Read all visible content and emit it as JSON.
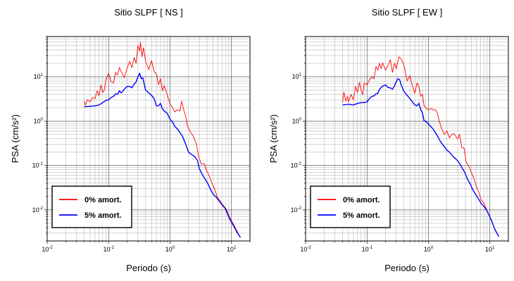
{
  "chart_data": [
    {
      "type": "line",
      "title": "Sitio SLPF [ NS ]",
      "xlabel": "Periodo (s)",
      "ylabel": "PSA (cm/s²)",
      "x_scale": "log",
      "y_scale": "log",
      "xlim": [
        0.01,
        20
      ],
      "ylim": [
        0.002,
        80
      ],
      "x_ticks": [
        {
          "base": "10",
          "exp": "-2",
          "value": 0.01
        },
        {
          "base": "10",
          "exp": "-1",
          "value": 0.1
        },
        {
          "base": "10",
          "exp": "0",
          "value": 1
        },
        {
          "base": "10",
          "exp": "1",
          "value": 10
        }
      ],
      "y_ticks": [
        {
          "base": "10",
          "exp": "-2",
          "value": 0.01
        },
        {
          "base": "10",
          "exp": "-1",
          "value": 0.1
        },
        {
          "base": "10",
          "exp": "0",
          "value": 1
        },
        {
          "base": "10",
          "exp": "1",
          "value": 10
        }
      ],
      "grid": true,
      "legend_position": "bottom-left",
      "series": [
        {
          "name": "0% amort.",
          "color": "#ff0000",
          "points": [
            [
              0.04,
              2.8
            ],
            [
              0.042,
              2.3
            ],
            [
              0.045,
              3.0
            ],
            [
              0.05,
              2.7
            ],
            [
              0.055,
              3.4
            ],
            [
              0.06,
              3.2
            ],
            [
              0.065,
              4.8
            ],
            [
              0.07,
              3.7
            ],
            [
              0.075,
              6.5
            ],
            [
              0.08,
              4.4
            ],
            [
              0.085,
              5.0
            ],
            [
              0.09,
              8.2
            ],
            [
              0.1,
              12.0
            ],
            [
              0.11,
              7.6
            ],
            [
              0.12,
              7.2
            ],
            [
              0.13,
              12.5
            ],
            [
              0.14,
              11.0
            ],
            [
              0.15,
              16.0
            ],
            [
              0.16,
              13.0
            ],
            [
              0.18,
              9.5
            ],
            [
              0.2,
              15.5
            ],
            [
              0.22,
              22.0
            ],
            [
              0.24,
              16.0
            ],
            [
              0.26,
              27.0
            ],
            [
              0.28,
              20.0
            ],
            [
              0.3,
              50.0
            ],
            [
              0.32,
              38.0
            ],
            [
              0.33,
              60.0
            ],
            [
              0.35,
              28.0
            ],
            [
              0.37,
              45.0
            ],
            [
              0.4,
              22.0
            ],
            [
              0.45,
              14.5
            ],
            [
              0.5,
              23.0
            ],
            [
              0.55,
              13.0
            ],
            [
              0.6,
              11.5
            ],
            [
              0.65,
              6.6
            ],
            [
              0.7,
              9.0
            ],
            [
              0.75,
              4.8
            ],
            [
              0.8,
              6.4
            ],
            [
              0.9,
              3.9
            ],
            [
              1.0,
              2.4
            ],
            [
              1.1,
              2.0
            ],
            [
              1.2,
              1.6
            ],
            [
              1.3,
              1.8
            ],
            [
              1.45,
              1.7
            ],
            [
              1.55,
              2.8
            ],
            [
              1.7,
              1.6
            ],
            [
              1.8,
              1.3
            ],
            [
              1.9,
              0.8
            ],
            [
              2.1,
              0.6
            ],
            [
              2.4,
              0.45
            ],
            [
              2.7,
              0.3
            ],
            [
              2.9,
              0.17
            ],
            [
              3.2,
              0.11
            ],
            [
              3.6,
              0.11
            ],
            [
              3.9,
              0.08
            ],
            [
              4.3,
              0.06
            ],
            [
              4.8,
              0.04
            ],
            [
              5.3,
              0.03
            ],
            [
              5.9,
              0.019
            ],
            [
              6.5,
              0.016
            ],
            [
              7.2,
              0.013
            ],
            [
              8.2,
              0.0105
            ],
            [
              9.5,
              0.0065
            ],
            [
              11.0,
              0.0045
            ],
            [
              12.5,
              0.0032
            ],
            [
              14.0,
              0.0024
            ]
          ]
        },
        {
          "name": "5% amort.",
          "color": "#0000ff",
          "points": [
            [
              0.04,
              2.1
            ],
            [
              0.05,
              2.15
            ],
            [
              0.06,
              2.2
            ],
            [
              0.07,
              2.3
            ],
            [
              0.08,
              2.6
            ],
            [
              0.09,
              2.9
            ],
            [
              0.1,
              3.0
            ],
            [
              0.11,
              3.4
            ],
            [
              0.12,
              3.6
            ],
            [
              0.13,
              4.1
            ],
            [
              0.14,
              4.0
            ],
            [
              0.15,
              4.8
            ],
            [
              0.16,
              4.3
            ],
            [
              0.18,
              5.2
            ],
            [
              0.2,
              6.0
            ],
            [
              0.22,
              6.0
            ],
            [
              0.24,
              5.6
            ],
            [
              0.26,
              6.8
            ],
            [
              0.28,
              7.6
            ],
            [
              0.3,
              9.8
            ],
            [
              0.32,
              12.0
            ],
            [
              0.34,
              9.0
            ],
            [
              0.36,
              9.4
            ],
            [
              0.4,
              5.0
            ],
            [
              0.45,
              4.3
            ],
            [
              0.5,
              3.8
            ],
            [
              0.55,
              3.2
            ],
            [
              0.6,
              2.2
            ],
            [
              0.65,
              2.2
            ],
            [
              0.7,
              2.5
            ],
            [
              0.75,
              1.9
            ],
            [
              0.8,
              1.7
            ],
            [
              0.9,
              1.5
            ],
            [
              1.0,
              1.1
            ],
            [
              1.1,
              0.95
            ],
            [
              1.2,
              0.75
            ],
            [
              1.3,
              0.68
            ],
            [
              1.45,
              0.55
            ],
            [
              1.6,
              0.45
            ],
            [
              1.8,
              0.3
            ],
            [
              2.0,
              0.2
            ],
            [
              2.2,
              0.18
            ],
            [
              2.5,
              0.16
            ],
            [
              2.8,
              0.13
            ],
            [
              3.0,
              0.085
            ],
            [
              3.3,
              0.065
            ],
            [
              3.7,
              0.05
            ],
            [
              4.1,
              0.04
            ],
            [
              4.6,
              0.028
            ],
            [
              5.1,
              0.022
            ],
            [
              5.7,
              0.019
            ],
            [
              6.3,
              0.016
            ],
            [
              7.0,
              0.013
            ],
            [
              8.0,
              0.0105
            ],
            [
              9.2,
              0.0065
            ],
            [
              10.7,
              0.0045
            ],
            [
              12.2,
              0.0032
            ],
            [
              14.0,
              0.0024
            ]
          ]
        }
      ]
    },
    {
      "type": "line",
      "title": "Sitio SLPF [ EW ]",
      "xlabel": "Periodo (s)",
      "ylabel": "PSA (cm/s²)",
      "x_scale": "log",
      "y_scale": "log",
      "xlim": [
        0.01,
        20
      ],
      "ylim": [
        0.002,
        80
      ],
      "x_ticks": [
        {
          "base": "10",
          "exp": "-2",
          "value": 0.01
        },
        {
          "base": "10",
          "exp": "-1",
          "value": 0.1
        },
        {
          "base": "10",
          "exp": "0",
          "value": 1
        },
        {
          "base": "10",
          "exp": "1",
          "value": 10
        }
      ],
      "y_ticks": [
        {
          "base": "10",
          "exp": "-2",
          "value": 0.01
        },
        {
          "base": "10",
          "exp": "-1",
          "value": 0.1
        },
        {
          "base": "10",
          "exp": "0",
          "value": 1
        },
        {
          "base": "10",
          "exp": "1",
          "value": 10
        }
      ],
      "grid": true,
      "legend_position": "bottom-left",
      "series": [
        {
          "name": "0% amort.",
          "color": "#ff0000",
          "points": [
            [
              0.04,
              2.6
            ],
            [
              0.042,
              4.5
            ],
            [
              0.045,
              2.8
            ],
            [
              0.048,
              3.6
            ],
            [
              0.05,
              2.7
            ],
            [
              0.055,
              4.0
            ],
            [
              0.06,
              3.0
            ],
            [
              0.065,
              6.0
            ],
            [
              0.07,
              4.4
            ],
            [
              0.075,
              7.4
            ],
            [
              0.08,
              5.0
            ],
            [
              0.085,
              3.9
            ],
            [
              0.09,
              7.2
            ],
            [
              0.1,
              6.5
            ],
            [
              0.11,
              8.5
            ],
            [
              0.12,
              10.0
            ],
            [
              0.13,
              9.0
            ],
            [
              0.14,
              17.0
            ],
            [
              0.15,
              14.0
            ],
            [
              0.16,
              20.0
            ],
            [
              0.17,
              15.0
            ],
            [
              0.18,
              20.5
            ],
            [
              0.2,
              14.0
            ],
            [
              0.22,
              18.0
            ],
            [
              0.24,
              24.0
            ],
            [
              0.26,
              12.5
            ],
            [
              0.28,
              20.0
            ],
            [
              0.3,
              15.0
            ],
            [
              0.33,
              28.0
            ],
            [
              0.36,
              25.0
            ],
            [
              0.4,
              18.0
            ],
            [
              0.45,
              8.0
            ],
            [
              0.5,
              10.5
            ],
            [
              0.55,
              6.0
            ],
            [
              0.6,
              4.2
            ],
            [
              0.65,
              7.2
            ],
            [
              0.7,
              6.0
            ],
            [
              0.75,
              3.6
            ],
            [
              0.8,
              4.0
            ],
            [
              0.85,
              2.2
            ],
            [
              0.9,
              2.0
            ],
            [
              1.0,
              1.8
            ],
            [
              1.1,
              1.9
            ],
            [
              1.2,
              1.8
            ],
            [
              1.3,
              1.8
            ],
            [
              1.4,
              1.5
            ],
            [
              1.5,
              1.0
            ],
            [
              1.6,
              0.75
            ],
            [
              1.8,
              0.5
            ],
            [
              2.0,
              0.6
            ],
            [
              2.2,
              0.42
            ],
            [
              2.4,
              0.5
            ],
            [
              2.6,
              0.52
            ],
            [
              2.8,
              0.45
            ],
            [
              3.0,
              0.4
            ],
            [
              3.2,
              0.5
            ],
            [
              3.5,
              0.25
            ],
            [
              3.8,
              0.25
            ],
            [
              4.1,
              0.12
            ],
            [
              4.5,
              0.1
            ],
            [
              5.0,
              0.07
            ],
            [
              5.5,
              0.05
            ],
            [
              6.0,
              0.035
            ],
            [
              6.6,
              0.025
            ],
            [
              7.2,
              0.017
            ],
            [
              8.0,
              0.014
            ],
            [
              9.0,
              0.0095
            ],
            [
              10.5,
              0.006
            ],
            [
              12.0,
              0.0037
            ],
            [
              14.0,
              0.0025
            ]
          ]
        },
        {
          "name": "5% amort.",
          "color": "#0000ff",
          "points": [
            [
              0.04,
              2.3
            ],
            [
              0.05,
              2.4
            ],
            [
              0.06,
              2.3
            ],
            [
              0.07,
              2.5
            ],
            [
              0.08,
              2.6
            ],
            [
              0.09,
              2.6
            ],
            [
              0.1,
              2.7
            ],
            [
              0.11,
              3.2
            ],
            [
              0.12,
              3.6
            ],
            [
              0.13,
              3.7
            ],
            [
              0.14,
              4.1
            ],
            [
              0.15,
              4.2
            ],
            [
              0.16,
              5.2
            ],
            [
              0.18,
              6.2
            ],
            [
              0.2,
              6.5
            ],
            [
              0.22,
              5.7
            ],
            [
              0.24,
              5.6
            ],
            [
              0.26,
              5.2
            ],
            [
              0.28,
              6.2
            ],
            [
              0.3,
              7.8
            ],
            [
              0.32,
              9.0
            ],
            [
              0.34,
              8.5
            ],
            [
              0.36,
              6.5
            ],
            [
              0.4,
              4.6
            ],
            [
              0.45,
              3.8
            ],
            [
              0.5,
              3.2
            ],
            [
              0.55,
              2.7
            ],
            [
              0.6,
              2.3
            ],
            [
              0.65,
              2.2
            ],
            [
              0.7,
              2.5
            ],
            [
              0.75,
              1.8
            ],
            [
              0.8,
              1.5
            ],
            [
              0.85,
              1.0
            ],
            [
              0.9,
              1.0
            ],
            [
              1.0,
              0.85
            ],
            [
              1.1,
              0.75
            ],
            [
              1.2,
              0.65
            ],
            [
              1.3,
              0.55
            ],
            [
              1.4,
              0.46
            ],
            [
              1.6,
              0.33
            ],
            [
              1.8,
              0.27
            ],
            [
              2.0,
              0.22
            ],
            [
              2.2,
              0.2
            ],
            [
              2.5,
              0.16
            ],
            [
              2.8,
              0.14
            ],
            [
              3.1,
              0.12
            ],
            [
              3.5,
              0.09
            ],
            [
              3.9,
              0.07
            ],
            [
              4.3,
              0.05
            ],
            [
              4.8,
              0.038
            ],
            [
              5.3,
              0.028
            ],
            [
              5.9,
              0.022
            ],
            [
              6.5,
              0.018
            ],
            [
              7.2,
              0.014
            ],
            [
              8.0,
              0.012
            ],
            [
              9.0,
              0.0095
            ],
            [
              10.5,
              0.006
            ],
            [
              12.0,
              0.0037
            ],
            [
              14.0,
              0.0025
            ]
          ]
        }
      ]
    }
  ]
}
